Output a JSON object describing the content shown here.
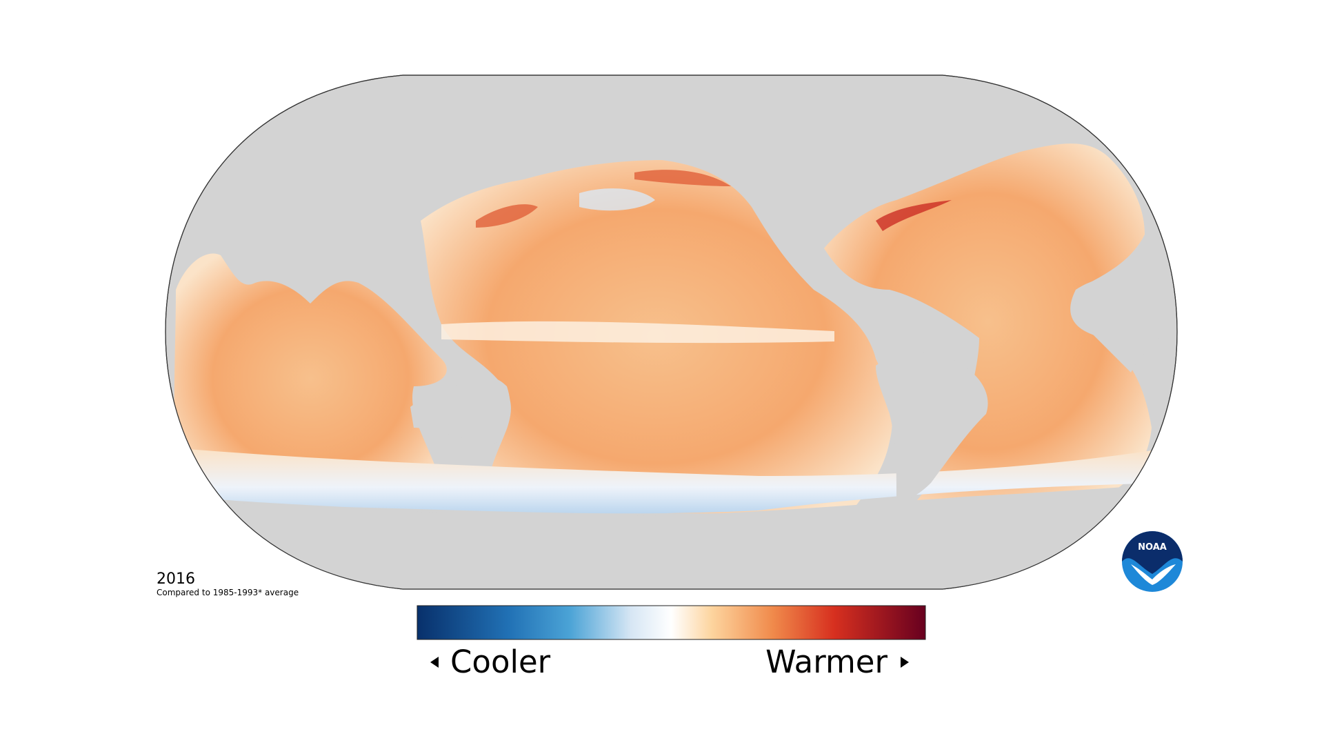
{
  "map": {
    "year": "2016",
    "caption": "Compared to 1985-1993* average"
  },
  "legend": {
    "low_label": "Cooler",
    "high_label": "Warmer"
  },
  "logo": {
    "text": "NOAA"
  }
}
